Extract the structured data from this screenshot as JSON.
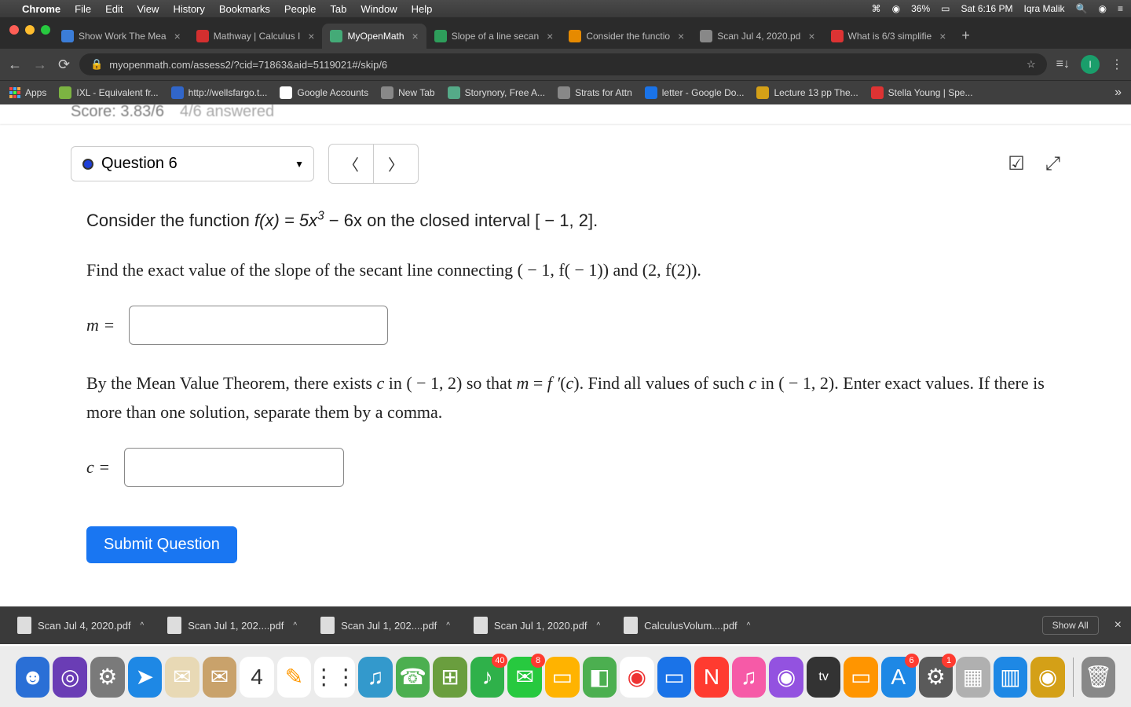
{
  "menubar": {
    "app": "Chrome",
    "items": [
      "File",
      "Edit",
      "View",
      "History",
      "Bookmarks",
      "People",
      "Tab",
      "Window",
      "Help"
    ],
    "battery": "36%",
    "datetime": "Sat 6:16 PM",
    "user": "Iqra Malik"
  },
  "tabs": [
    {
      "title": "Show Work The Mea",
      "fav_color": "#3b7dd8"
    },
    {
      "title": "Mathway | Calculus I",
      "fav_color": "#d32f2f"
    },
    {
      "title": "MyOpenMath",
      "fav_color": "#4a7",
      "active": true
    },
    {
      "title": "Slope of a line secan",
      "fav_color": "#2e9e5b"
    },
    {
      "title": "Consider the functio",
      "fav_color": "#e68a00"
    },
    {
      "title": "Scan Jul 4, 2020.pd",
      "fav_color": "#888"
    },
    {
      "title": "What is 6/3 simplifie",
      "fav_color": "#d33"
    }
  ],
  "url": "myopenmath.com/assess2/?cid=71863&aid=5119021#/skip/6",
  "bookmarks": [
    {
      "label": "Apps",
      "color": ""
    },
    {
      "label": "IXL - Equivalent fr...",
      "color": "#7cb342"
    },
    {
      "label": "http://wellsfargo.t...",
      "color": "#3166c9"
    },
    {
      "label": "Google Accounts",
      "color": "#fff"
    },
    {
      "label": "New Tab",
      "color": "#888"
    },
    {
      "label": "Storynory, Free A...",
      "color": "#5a8"
    },
    {
      "label": "Strats for Attn",
      "color": "#888"
    },
    {
      "label": "letter - Google Do...",
      "color": "#1a73e8"
    },
    {
      "label": "Lecture 13 pp The...",
      "color": "#d4a017"
    },
    {
      "label": "Stella Young | Spe...",
      "color": "#d33"
    }
  ],
  "score": {
    "label": "Score:",
    "value": "3.83/6",
    "answered": "4/6 answered"
  },
  "question": {
    "number": "Question 6",
    "line1_pre": "Consider the function ",
    "line1_func": "f(x) = 5x",
    "line1_exp": "3",
    "line1_post": " − 6x on the closed interval [ − 1, 2].",
    "line2": "Find the exact value of the slope of the secant line connecting ( − 1, f( − 1)) and (2, f(2)).",
    "m_label": "m =",
    "line3": "By the Mean Value Theorem, there exists c in ( − 1, 2) so that m = f ′(c). Find all values of such c in ( − 1, 2). Enter exact values. If there is more than one solution, separate them by a comma.",
    "c_label": "c =",
    "submit": "Submit Question"
  },
  "downloads": [
    {
      "name": "Scan Jul 4, 2020.pdf"
    },
    {
      "name": "Scan Jul 1, 202....pdf"
    },
    {
      "name": "Scan Jul 1, 202....pdf"
    },
    {
      "name": "Scan Jul 1, 2020.pdf"
    },
    {
      "name": "CalculusVolum....pdf"
    }
  ],
  "downloads_showall": "Show All",
  "dock": [
    {
      "color": "#2a6fd6",
      "glyph": "☻"
    },
    {
      "color": "#6a3db5",
      "glyph": "◎"
    },
    {
      "color": "#7a7a7a",
      "glyph": "⚙"
    },
    {
      "color": "#1e88e5",
      "glyph": "➤"
    },
    {
      "color": "#e8d9b5",
      "glyph": "✉"
    },
    {
      "color": "#c9a26b",
      "glyph": "✉"
    },
    {
      "color": "#fff",
      "glyph": "4",
      "text_color": "#333",
      "label": "JUL",
      "badge": ""
    },
    {
      "color": "#fff",
      "glyph": "✎",
      "text_color": "#ff9800"
    },
    {
      "color": "#fff",
      "glyph": "⋮⋮",
      "text_color": "#333"
    },
    {
      "color": "#39c",
      "glyph": "♫"
    },
    {
      "color": "#4caf50",
      "glyph": "☎"
    },
    {
      "color": "#6a9e3e",
      "glyph": "⊞"
    },
    {
      "color": "#2fb14a",
      "glyph": "♪",
      "badge": "40"
    },
    {
      "color": "#27c93f",
      "glyph": "✉",
      "badge": "8"
    },
    {
      "color": "#ffb300",
      "glyph": "▭"
    },
    {
      "color": "#4caf50",
      "glyph": "◧"
    },
    {
      "color": "#fff",
      "glyph": "◉",
      "text_color": "#e33"
    },
    {
      "color": "#1a73e8",
      "glyph": "▭"
    },
    {
      "color": "#ff3b30",
      "glyph": "N"
    },
    {
      "color": "#f65aa7",
      "glyph": "♫"
    },
    {
      "color": "#9352e0",
      "glyph": "◉"
    },
    {
      "color": "#333",
      "glyph": "tv",
      "text_small": true
    },
    {
      "color": "#ff9500",
      "glyph": "▭"
    },
    {
      "color": "#1e88e5",
      "glyph": "A",
      "badge": "6"
    },
    {
      "color": "#5a5a5a",
      "glyph": "⚙",
      "badge": "1"
    },
    {
      "color": "#b0b0b0",
      "glyph": "▦"
    },
    {
      "color": "#1e88e5",
      "glyph": "▥"
    },
    {
      "color": "#d4a017",
      "glyph": "◉"
    }
  ]
}
